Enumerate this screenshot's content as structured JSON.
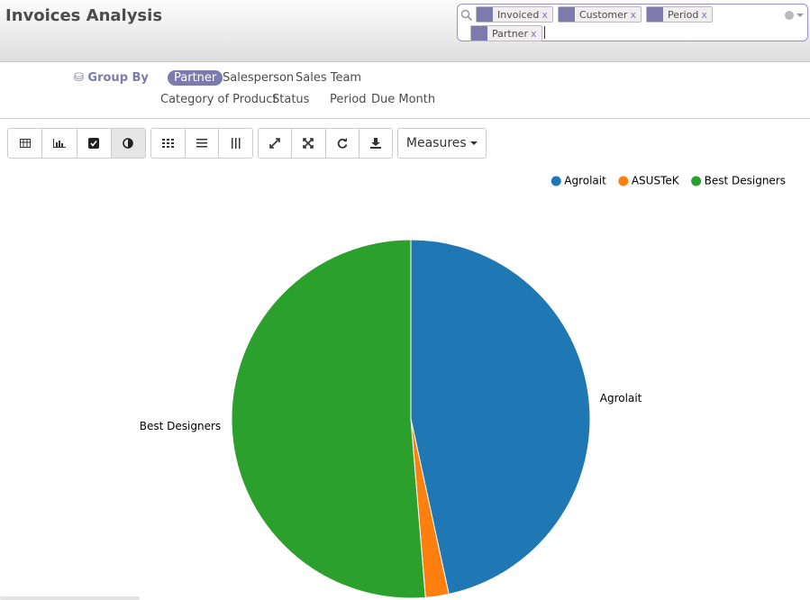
{
  "header": {
    "title": "Invoices Analysis"
  },
  "search": {
    "facets": [
      "Invoiced",
      "Customer",
      "Period",
      "Partner"
    ]
  },
  "group_by": {
    "label": "Group By",
    "options": [
      "Partner",
      "Salesperson",
      "Sales Team",
      "Category of Product",
      "Status",
      "Period",
      "Due Month"
    ]
  },
  "toolbar": {
    "measures": "Measures"
  },
  "chart_data": {
    "type": "pie",
    "categories": [
      "Agrolait",
      "ASUSTeK",
      "Best Designers"
    ],
    "values": [
      46.6,
      2.1,
      51.3
    ],
    "colors": [
      "#1f77b4",
      "#ff7f0e",
      "#2ca02c"
    ],
    "legend": "top-right"
  }
}
